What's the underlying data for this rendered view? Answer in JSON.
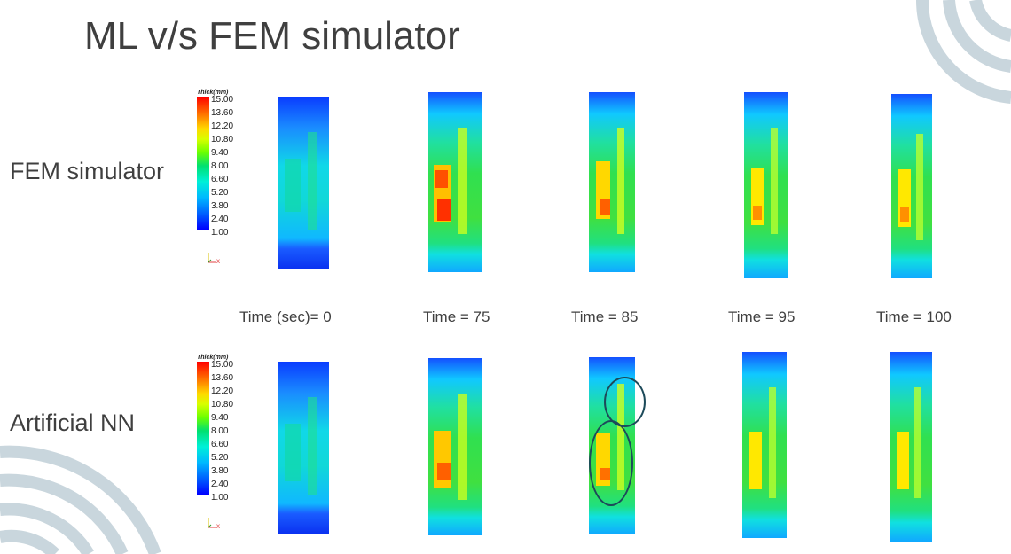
{
  "title": "ML v/s FEM simulator",
  "rows": {
    "fem_label": "FEM simulator",
    "nn_label": "Artificial NN"
  },
  "times": [
    "Time (sec)= 0",
    "Time = 75",
    "Time = 85",
    "Time = 95",
    "Time = 100"
  ],
  "scale": {
    "header": "Thick(mm)",
    "ticks": [
      "15.00",
      "13.60",
      "12.20",
      "10.80",
      "9.40",
      "8.00",
      "6.60",
      "5.20",
      "3.80",
      "2.40",
      "1.00"
    ],
    "axis_label": "x"
  },
  "colors": {
    "deco_arc": "#c9d6dd",
    "ellipse": "#1d4a5a"
  }
}
